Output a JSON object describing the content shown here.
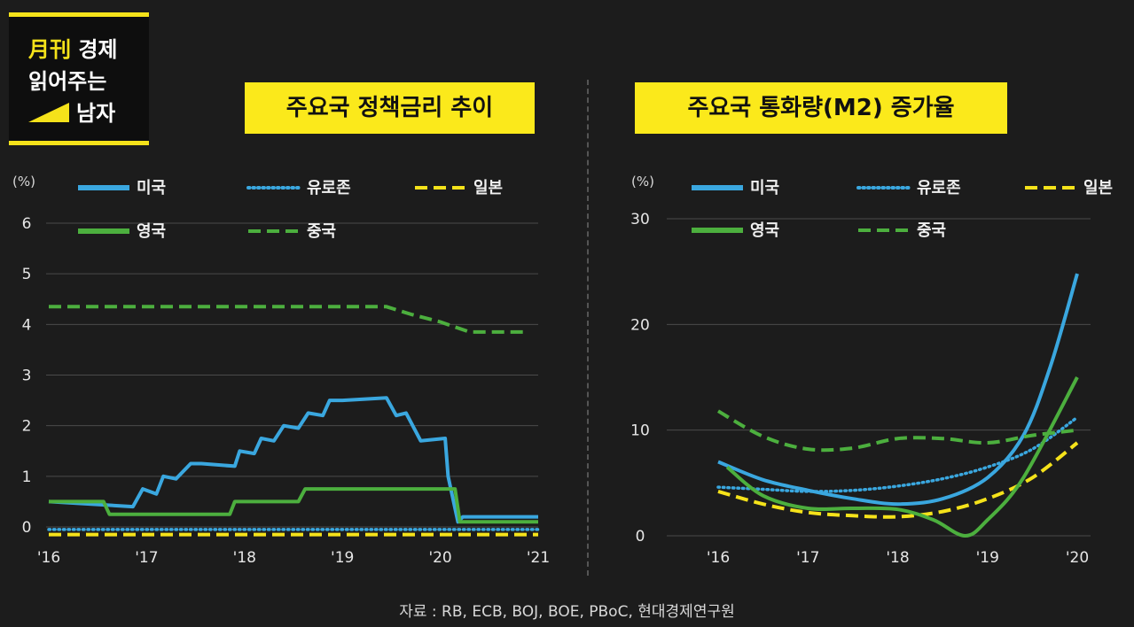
{
  "logo": {
    "line1_accent": "月刊",
    "line1_rest": " 경제",
    "line2": "읽어주는",
    "line3": "남자"
  },
  "source": "자료 : RB, ECB, BOJ, BOE, PBoC, 현대경제연구원",
  "colors": {
    "us": "#3aa7df",
    "euro": "#3aa7df",
    "japan": "#f5e21a",
    "uk": "#4caf3e",
    "china": "#4caf3e",
    "accent": "#fbe91b"
  },
  "chart_data": [
    {
      "type": "line",
      "title": "주요국 정책금리 추이",
      "ylabel": "(%)",
      "ylim": [
        0,
        6
      ],
      "yticks": [
        "6",
        "5",
        "4",
        "3",
        "2",
        "1",
        "0"
      ],
      "xticks": [
        "'16",
        "'17",
        "'18",
        "'19",
        "'20",
        "'21"
      ],
      "xlim": [
        2016,
        2021
      ],
      "grid": true,
      "legend": [
        "미국",
        "유로존",
        "일본",
        "영국",
        "중국"
      ],
      "series": [
        {
          "name": "미국",
          "style": "solid",
          "color": "#3aa7df",
          "x": [
            2016.0,
            2016.86,
            2016.96,
            2017.1,
            2017.17,
            2017.3,
            2017.45,
            2017.56,
            2017.9,
            2017.95,
            2018.1,
            2018.17,
            2018.3,
            2018.4,
            2018.55,
            2018.65,
            2018.8,
            2018.87,
            2019.0,
            2019.45,
            2019.55,
            2019.65,
            2019.8,
            2020.05,
            2020.08,
            2020.18,
            2020.23,
            2021.0
          ],
          "y": [
            0.5,
            0.4,
            0.75,
            0.65,
            1.0,
            0.95,
            1.25,
            1.25,
            1.2,
            1.5,
            1.45,
            1.75,
            1.7,
            2.0,
            1.95,
            2.25,
            2.2,
            2.5,
            2.5,
            2.55,
            2.2,
            2.25,
            1.7,
            1.75,
            1.0,
            0.1,
            0.2,
            0.2
          ]
        },
        {
          "name": "유로존",
          "style": "dotted",
          "color": "#3aa7df",
          "x": [
            2016.0,
            2021.0
          ],
          "y": [
            -0.05,
            -0.05
          ]
        },
        {
          "name": "일본",
          "style": "dashed",
          "color": "#f5e21a",
          "x": [
            2016.0,
            2021.0
          ],
          "y": [
            -0.15,
            -0.15
          ]
        },
        {
          "name": "영국",
          "style": "solid",
          "color": "#4caf3e",
          "x": [
            2016.0,
            2016.56,
            2016.62,
            2017.85,
            2017.9,
            2018.55,
            2018.62,
            2020.15,
            2020.2,
            2021.0
          ],
          "y": [
            0.5,
            0.5,
            0.25,
            0.25,
            0.5,
            0.5,
            0.75,
            0.75,
            0.1,
            0.1
          ]
        },
        {
          "name": "중국",
          "style": "dashed",
          "color": "#4caf3e",
          "x": [
            2016.0,
            2019.45,
            2019.7,
            2020.0,
            2020.3,
            2020.5,
            2020.85
          ],
          "y": [
            4.35,
            4.35,
            4.2,
            4.05,
            3.85,
            3.85,
            3.85
          ]
        }
      ]
    },
    {
      "type": "line",
      "title": "주요국 통화량(M2) 증가율",
      "ylabel": "(%)",
      "ylim": [
        0,
        30
      ],
      "yticks": [
        "30",
        "20",
        "10",
        "0"
      ],
      "xticks": [
        "'16",
        "'17",
        "'18",
        "'19",
        "'20"
      ],
      "xlim": [
        2016,
        2020
      ],
      "grid": true,
      "legend": [
        "미국",
        "유로존",
        "일본",
        "영국",
        "중국"
      ],
      "series": [
        {
          "name": "미국",
          "style": "solid",
          "color": "#3aa7df",
          "x": [
            2016.0,
            2016.5,
            2017.0,
            2017.5,
            2018.0,
            2018.5,
            2019.0,
            2019.4,
            2019.7,
            2020.0
          ],
          "y": [
            7.0,
            5.3,
            4.3,
            3.5,
            3.0,
            3.5,
            5.5,
            9.5,
            16.0,
            24.8
          ]
        },
        {
          "name": "유로존",
          "style": "dotted",
          "color": "#3aa7df",
          "x": [
            2016.0,
            2016.5,
            2017.0,
            2017.5,
            2018.0,
            2018.5,
            2019.0,
            2019.5,
            2020.0
          ],
          "y": [
            4.6,
            4.4,
            4.2,
            4.3,
            4.7,
            5.4,
            6.5,
            8.2,
            11.2
          ]
        },
        {
          "name": "일본",
          "style": "dashed",
          "color": "#f5e21a",
          "x": [
            2016.0,
            2016.5,
            2017.0,
            2017.5,
            2018.0,
            2018.5,
            2019.0,
            2019.5,
            2020.0
          ],
          "y": [
            4.2,
            3.0,
            2.2,
            1.9,
            1.8,
            2.3,
            3.5,
            5.5,
            8.8
          ]
        },
        {
          "name": "영국",
          "style": "solid",
          "color": "#4caf3e",
          "x": [
            2016.1,
            2016.5,
            2017.0,
            2017.5,
            2018.0,
            2018.4,
            2018.75,
            2019.0,
            2019.4,
            2020.0
          ],
          "y": [
            6.5,
            3.8,
            2.6,
            2.6,
            2.5,
            1.5,
            0.0,
            1.5,
            5.5,
            15.0
          ]
        },
        {
          "name": "중국",
          "style": "dashed",
          "color": "#4caf3e",
          "x": [
            2016.0,
            2016.5,
            2017.0,
            2017.5,
            2018.0,
            2018.5,
            2019.0,
            2019.5,
            2020.0
          ],
          "y": [
            11.8,
            9.4,
            8.2,
            8.3,
            9.2,
            9.2,
            8.8,
            9.5,
            10.0
          ]
        }
      ]
    }
  ]
}
